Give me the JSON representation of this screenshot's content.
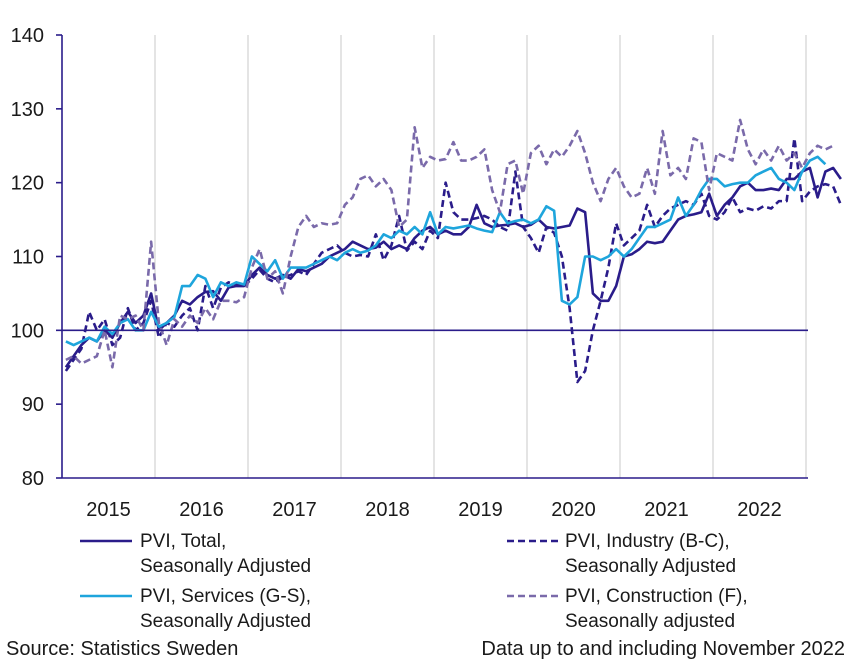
{
  "chart_data": {
    "type": "line",
    "title": "",
    "xlabel": "",
    "ylabel": "",
    "ylim": [
      80,
      140
    ],
    "yticks": [
      80,
      90,
      100,
      110,
      120,
      130,
      140
    ],
    "x_start": "2015-01",
    "year_labels": [
      "2015",
      "2016",
      "2017",
      "2018",
      "2019",
      "2020",
      "2021",
      "2022"
    ],
    "grid": "vertical lines at year boundaries",
    "reference_line": 100,
    "legend_position": "bottom",
    "series": [
      {
        "name": "PVI, Total, Seasonally Adjusted",
        "legend_lines": [
          "PVI, Total,",
          "Seasonally Adjusted"
        ],
        "color": "#2a1c8a",
        "dash": "solid",
        "values": [
          95,
          96.5,
          98,
          99,
          98.5,
          100,
          99,
          101,
          102.5,
          101,
          102,
          105,
          100,
          101,
          102,
          104,
          103.5,
          104.5,
          105.2,
          105.3,
          104,
          105.8,
          106,
          106,
          107.5,
          108.5,
          107.5,
          107,
          107.5,
          107,
          108.3,
          108,
          108.5,
          109,
          110,
          110.5,
          111,
          112,
          111.5,
          111,
          111.2,
          112,
          111,
          111.5,
          111,
          112.5,
          113.5,
          114,
          113,
          113.5,
          113,
          113,
          114,
          117,
          114.5,
          114,
          114.2,
          114.3,
          114.5,
          114,
          114.3,
          115,
          114,
          113.8,
          114,
          114.2,
          116.5,
          116,
          105,
          104,
          104,
          106,
          110,
          110.3,
          111,
          112,
          111.8,
          112,
          113.5,
          115,
          115.5,
          115.7,
          116,
          118.5,
          115.5,
          117,
          118,
          119.5,
          120,
          119,
          119,
          119.2,
          119,
          120.5,
          120.5,
          121.5,
          122,
          118,
          121.5,
          122,
          120.5
        ]
      },
      {
        "name": "PVI, Industry (B-C), Seasonally Adjusted",
        "legend_lines": [
          "PVI, Industry (B-C),",
          "Seasonally Adjusted"
        ],
        "color": "#2a1c8a",
        "dash": "dashed",
        "values": [
          94.5,
          96,
          97.5,
          102.5,
          100,
          101.5,
          98,
          99,
          103,
          100,
          101,
          104,
          99,
          101,
          100.5,
          102,
          103,
          100,
          106,
          103,
          105.8,
          106.5,
          106.2,
          106,
          107,
          108.2,
          107,
          106.5,
          107.2,
          107.5,
          108,
          107.5,
          109,
          110.5,
          111,
          111.5,
          110.5,
          110,
          110.2,
          110,
          113,
          109.5,
          111.5,
          115.5,
          110.8,
          112,
          111,
          113.5,
          112.5,
          120,
          116,
          115,
          115,
          115.2,
          115.5,
          115,
          114,
          113.5,
          121.5,
          114,
          112.5,
          110.5,
          114,
          113.2,
          110,
          103,
          93,
          94.5,
          100,
          104,
          108.5,
          114.5,
          111.5,
          112.5,
          113.5,
          117,
          114,
          115.5,
          116.5,
          117,
          117.5,
          117,
          118.5,
          115.5,
          115,
          116,
          118,
          116,
          116.5,
          116.2,
          116.8,
          116.5,
          117.5,
          117.5,
          126,
          117.5,
          118.8,
          119.5,
          119.8,
          119.5,
          117
        ]
      },
      {
        "name": "PVI, Services (G-S), Seasonally Adjusted",
        "legend_lines": [
          "PVI, Services (G-S),",
          "Seasonally Adjusted"
        ],
        "color": "#1ea5dc",
        "dash": "solid",
        "values": [
          98.5,
          98,
          98.5,
          99,
          98.5,
          100.5,
          99.5,
          101,
          101.5,
          100,
          100,
          102.5,
          100.5,
          101,
          101.8,
          106,
          106,
          107.5,
          107,
          104.5,
          106.5,
          106,
          106.5,
          106.2,
          110,
          109,
          108,
          109.5,
          107,
          108.5,
          108.5,
          108.5,
          109,
          109.5,
          110,
          109.5,
          110.5,
          111,
          110.5,
          110.8,
          111.5,
          113,
          112.5,
          113.5,
          113,
          114,
          113,
          116,
          113,
          114,
          113.8,
          114,
          114.2,
          113.8,
          113.5,
          113.3,
          116,
          114.5,
          114.8,
          115,
          114.5,
          115,
          116.8,
          116.2,
          104,
          103.5,
          104.5,
          110,
          110,
          109.5,
          110,
          111,
          110,
          111,
          112.5,
          114,
          114,
          114.5,
          115,
          118,
          115.5,
          117,
          119,
          120.5,
          120.5,
          119.5,
          119.8,
          120,
          120,
          121,
          121.5,
          122,
          120.5,
          120,
          119,
          121.5,
          123,
          123.5,
          122.5
        ]
      },
      {
        "name": "PVI, Construction (F), Seasonally adjusted",
        "legend_lines": [
          "PVI, Construction (F),",
          "Seasonally adjusted"
        ],
        "color": "#7a6aaa",
        "dash": "dashed",
        "values": [
          96,
          96.5,
          95.5,
          96,
          96.5,
          100,
          95,
          102,
          101.5,
          102,
          100,
          112,
          101,
          98,
          101.5,
          100.5,
          102,
          101,
          103,
          101.5,
          104,
          104,
          103.8,
          104.5,
          108.5,
          111,
          107,
          108,
          105,
          110,
          114,
          115.5,
          114,
          114.5,
          114.3,
          114.5,
          117,
          118,
          120.5,
          121,
          119.5,
          120.5,
          119,
          114,
          115,
          127.5,
          122,
          123.5,
          123,
          123.2,
          125.5,
          123,
          123,
          123.5,
          124.5,
          119,
          116,
          122.5,
          123,
          118.5,
          124,
          125,
          122.5,
          124.5,
          123.5,
          125,
          127,
          124,
          120,
          117.5,
          120.5,
          122,
          119.5,
          118,
          118.5,
          122,
          118.5,
          127,
          121,
          122,
          120.5,
          126,
          125.5,
          119,
          124,
          123.5,
          123,
          128.5,
          124.5,
          122.5,
          124.5,
          123,
          125,
          123,
          124,
          122,
          124,
          125,
          124.5,
          125
        ]
      }
    ]
  },
  "footer": {
    "source": "Source: Statistics Sweden",
    "note": "Data up to and including November 2022"
  }
}
